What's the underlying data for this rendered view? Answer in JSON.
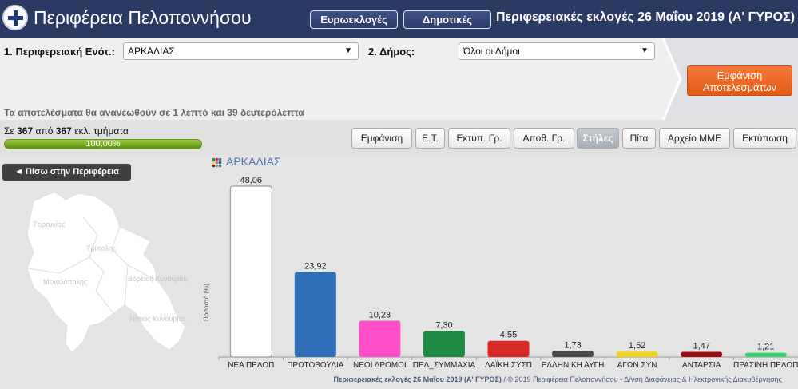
{
  "header": {
    "title": "Περιφέρεια Πελοποννήσου",
    "euro_label": "Ευρωεκλογές",
    "dimo_label": "Δημοτικές",
    "election_title": "Περιφερειακές εκλογές 26 Μαΐου 2019 (Α' ΓΥΡΟΣ)"
  },
  "filters": {
    "unit_label": "1. Περιφερειακή Ενότ.:",
    "unit_value": "ΑΡΚΑΔΙΑΣ",
    "municipality_label": "2. Δήμος:",
    "municipality_value": "Όλοι οι Δήμοι",
    "show_results_label_1": "Εμφάνιση",
    "show_results_label_2": "Αποτελεσμάτων",
    "refresh_note": "Τα αποτελέσματα θα ανανεωθούν σε 1 λεπτό και 39 δευτερόλεπτα"
  },
  "toolbar": {
    "sections_prefix": "Σε",
    "sections_counted": "367",
    "sections_mid": "από",
    "sections_total": "367",
    "sections_suffix": "εκλ. τμήματα",
    "progress_text": "100,00%",
    "progress_value": 100,
    "buttons": [
      "Εμφάνιση",
      "Ε.Τ.",
      "Εκτύπ. Γρ.",
      "Αποθ. Γρ.",
      "Στήλες",
      "Πίτα",
      "Αρχείο ΜΜΕ",
      "Εκτύπωση"
    ],
    "active_button": "Στήλες"
  },
  "sidebar": {
    "back_label": "◄ Πίσω στην Περιφέρεια",
    "map_labels": [
      "Γορτυνίας",
      "Τρίπολης",
      "Μεγαλόπολης",
      "Βόρειας Κυνουρίας",
      "Νότιας Κυνουρίας"
    ]
  },
  "chart_data": {
    "type": "bar",
    "title": "ΑΡΚΑΔΙΑΣ",
    "ylabel": "Ποσοστό (%)",
    "categories": [
      "ΝΕΑ ΠΕΛΟΠ",
      "ΠΡΩΤΟΒΟΥΛΙΑ",
      "ΝΕΟΙ ΔΡΟΜΟΙ",
      "ΠΕΛ_ΣΥΜΜΑΧΙΑ",
      "ΛΑΪΚΗ ΣΥΣΠ",
      "ΕΛΛΗΝΙΚΗ ΑΥΓΗ",
      "ΑΓΩΝ ΣΥΝ",
      "ΑΝΤΑΡΣΙΑ",
      "ΠΡΑΣΙΝΗ ΠΕΛΟΠ"
    ],
    "values": [
      48.06,
      23.92,
      10.23,
      7.3,
      4.55,
      1.73,
      1.52,
      1.47,
      1.21
    ],
    "value_labels": [
      "48,06",
      "23,92",
      "10,23",
      "7,30",
      "4,55",
      "1,73",
      "1,52",
      "1,47",
      "1,21"
    ],
    "colors": [
      "#ffffff",
      "#2f6fb8",
      "#ff4fc8",
      "#1f8a43",
      "#d92a2a",
      "#4a4a4a",
      "#f0d41c",
      "#9b0f17",
      "#39d46f"
    ],
    "ylim": [
      0,
      48.06
    ],
    "grid": false
  },
  "footer": {
    "bold_part": "Περιφερειακές εκλογές 26 Μαΐου 2019 (Α' ΓΥΡΟΣ)",
    "rest": " / © 2019 Περιφέρεια Πελοποννήσου - Δ/νση Διαφάνειας & Ηλεκτρονικής Διακυβέρνησης"
  }
}
